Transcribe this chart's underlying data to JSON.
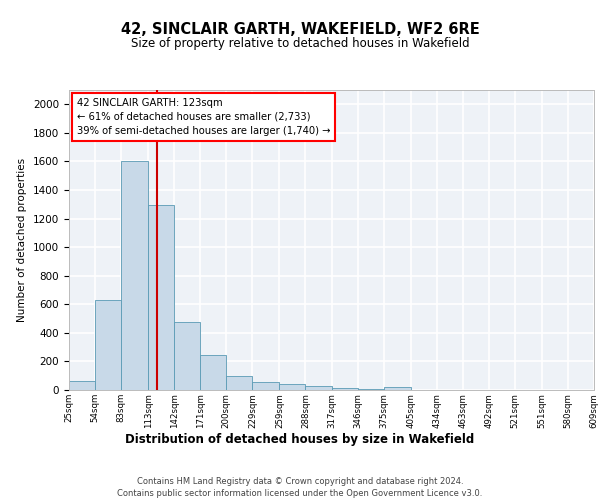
{
  "title": "42, SINCLAIR GARTH, WAKEFIELD, WF2 6RE",
  "subtitle": "Size of property relative to detached houses in Wakefield",
  "xlabel": "Distribution of detached houses by size in Wakefield",
  "ylabel": "Number of detached properties",
  "footer_line1": "Contains HM Land Registry data © Crown copyright and database right 2024.",
  "footer_line2": "Contains public sector information licensed under the Open Government Licence v3.0.",
  "bar_edges": [
    25,
    54,
    83,
    113,
    142,
    171,
    200,
    229,
    259,
    288,
    317,
    346,
    375,
    405,
    434,
    463,
    492,
    521,
    551,
    580,
    609
  ],
  "bar_heights": [
    60,
    630,
    1600,
    1295,
    475,
    245,
    95,
    55,
    40,
    25,
    15,
    10,
    20,
    0,
    0,
    0,
    0,
    0,
    0,
    0
  ],
  "bar_color": "#c8d9e8",
  "bar_edge_color": "#5a9ab5",
  "property_size": 123,
  "annotation_line1": "42 SINCLAIR GARTH: 123sqm",
  "annotation_line2": "← 61% of detached houses are smaller (2,733)",
  "annotation_line3": "39% of semi-detached houses are larger (1,740) →",
  "vline_color": "#cc0000",
  "ylim": [
    0,
    2100
  ],
  "yticks": [
    0,
    200,
    400,
    600,
    800,
    1000,
    1200,
    1400,
    1600,
    1800,
    2000
  ],
  "bg_color": "#eef2f7",
  "grid_color": "#ffffff"
}
